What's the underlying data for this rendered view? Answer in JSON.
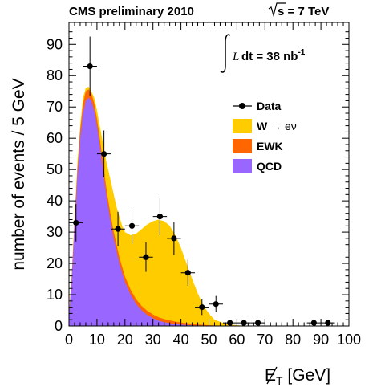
{
  "header": {
    "experiment": "CMS preliminary 2010",
    "energy_sqrt": "s",
    "energy_rest": " = 7 TeV"
  },
  "lumi": {
    "prefix": "L",
    "text": " dt = 38 nb",
    "exponent": "-1"
  },
  "axes": {
    "ylabel": "number of events / 5 GeV",
    "xlabel": "E",
    "xlabel_sub": "T",
    "xlabel_unit": " [GeV]"
  },
  "legend": {
    "data": "Data",
    "wenu_prefix": "W ",
    "wenu_arrow": "→",
    "wenu_suffix": " eν",
    "ewk": "EWK",
    "qcd": "QCD"
  },
  "colors": {
    "wenu": "#FFCC00",
    "ewk": "#FF6600",
    "qcd": "#9966FF",
    "data": "#000000"
  },
  "chart_data": {
    "type": "area",
    "xlim": [
      0,
      100
    ],
    "ylim": [
      0,
      97
    ],
    "xticks": [
      "0",
      "10",
      "20",
      "30",
      "40",
      "50",
      "60",
      "70",
      "80",
      "90",
      "100"
    ],
    "yticks": [
      "0",
      "10",
      "20",
      "30",
      "40",
      "50",
      "60",
      "70",
      "80",
      "90"
    ],
    "stack_curves": {
      "x": [
        0,
        1,
        2,
        3,
        4,
        5,
        6,
        7,
        8,
        9,
        10,
        11,
        12,
        13,
        14,
        15,
        16,
        17,
        18,
        19,
        20,
        22,
        24,
        26,
        28,
        30,
        32,
        34,
        36,
        38,
        40,
        42,
        44,
        46,
        48,
        50,
        52,
        55,
        58,
        62,
        66,
        70,
        80,
        100
      ],
      "qcd": [
        3,
        15,
        32,
        48,
        60,
        68,
        72,
        73,
        72,
        69,
        64,
        58,
        51,
        44,
        38,
        33,
        28,
        24,
        20,
        17,
        14,
        10,
        7,
        5,
        3.5,
        2.5,
        1.7,
        1.2,
        0.9,
        0.6,
        0.4,
        0.3,
        0.2,
        0.15,
        0.1,
        0.05,
        0.03,
        0,
        0,
        0,
        0,
        0,
        0,
        0
      ],
      "ewk_stack": [
        3.2,
        16,
        33.5,
        50,
        62.5,
        71,
        75,
        75.6,
        74.3,
        71.3,
        66.2,
        60.2,
        53.2,
        46.3,
        40.2,
        35.1,
        30.1,
        26.1,
        22,
        18.9,
        15.8,
        11.6,
        8.5,
        6.4,
        4.8,
        3.7,
        2.8,
        2.2,
        1.8,
        1.4,
        1.1,
        0.9,
        0.7,
        0.5,
        0.35,
        0.25,
        0.15,
        0.05,
        0,
        0,
        0,
        0,
        0,
        0
      ],
      "total": [
        3.5,
        17,
        35,
        52,
        64,
        73,
        76,
        76.5,
        75,
        73,
        69,
        64,
        59,
        54,
        50,
        46,
        42,
        38,
        35,
        32,
        30,
        29,
        29.5,
        31,
        32.5,
        33.5,
        34,
        33.5,
        32,
        29,
        25,
        20,
        15,
        10.5,
        6.5,
        4,
        2,
        1,
        0.4,
        0.1,
        0.05,
        0,
        0,
        0
      ]
    },
    "data_points": [
      {
        "x": 2.5,
        "y": 33,
        "err": 6
      },
      {
        "x": 7.5,
        "y": 83,
        "err": 9.5
      },
      {
        "x": 12.5,
        "y": 55,
        "err": 7.5
      },
      {
        "x": 17.5,
        "y": 31,
        "err": 5.5
      },
      {
        "x": 22.5,
        "y": 32,
        "err": 5.7
      },
      {
        "x": 27.5,
        "y": 22,
        "err": 4.7
      },
      {
        "x": 32.5,
        "y": 35,
        "err": 6
      },
      {
        "x": 37.5,
        "y": 28,
        "err": 5.3
      },
      {
        "x": 42.5,
        "y": 17,
        "err": 4.2
      },
      {
        "x": 47.5,
        "y": 6,
        "err": 2.5
      },
      {
        "x": 52.5,
        "y": 7,
        "err": 2.6
      },
      {
        "x": 57.5,
        "y": 1,
        "err": 1
      },
      {
        "x": 62.5,
        "y": 1,
        "err": 1
      },
      {
        "x": 67.5,
        "y": 1,
        "err": 1
      },
      {
        "x": 87.5,
        "y": 1,
        "err": 1
      },
      {
        "x": 92.5,
        "y": 1,
        "err": 1
      }
    ]
  }
}
